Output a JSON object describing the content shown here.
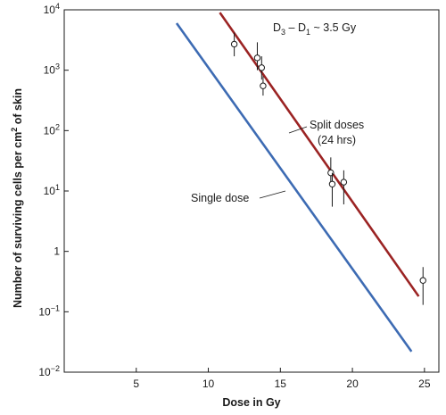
{
  "chart_data": {
    "type": "line",
    "xlabel": "Dose in Gy",
    "ylabel": "Number of surviving cells per cm",
    "ylabel_sup": "2",
    "ylabel_suffix": " of skin",
    "xlim": [
      0,
      26
    ],
    "ylim": [
      0.01,
      10000
    ],
    "y_scale": "log",
    "x_ticks": [
      5,
      10,
      15,
      20,
      25
    ],
    "y_ticks": [
      {
        "value": 10000,
        "base": "10",
        "exp": "4"
      },
      {
        "value": 1000,
        "base": "10",
        "exp": "3"
      },
      {
        "value": 100,
        "base": "10",
        "exp": "2"
      },
      {
        "value": 10,
        "base": "10",
        "exp": "1"
      },
      {
        "value": 1,
        "base": "1",
        "exp": ""
      },
      {
        "value": 0.1,
        "base": "10",
        "exp": "−1"
      },
      {
        "value": 0.01,
        "base": "10",
        "exp": "−2"
      }
    ],
    "series": [
      {
        "name": "Single dose",
        "color": "#3d6bb3",
        "line": [
          [
            7.8,
            6000
          ],
          [
            24.1,
            0.022
          ]
        ]
      },
      {
        "name": "Split doses",
        "name_line2": "(24 hrs)",
        "color": "#9b2323",
        "line": [
          [
            10.8,
            9000
          ],
          [
            24.6,
            0.18
          ]
        ],
        "points": [
          {
            "x": 11.8,
            "y": 2700,
            "ylo": 1700,
            "yhi": 4200
          },
          {
            "x": 13.4,
            "y": 1600,
            "ylo": 1000,
            "yhi": 2900
          },
          {
            "x": 13.7,
            "y": 1100,
            "ylo": 700,
            "yhi": 1700
          },
          {
            "x": 13.8,
            "y": 550,
            "ylo": 380,
            "yhi": 800
          },
          {
            "x": 18.5,
            "y": 20,
            "ylo": 12,
            "yhi": 36
          },
          {
            "x": 18.6,
            "y": 13,
            "ylo": 5.5,
            "yhi": 20
          },
          {
            "x": 19.4,
            "y": 14,
            "ylo": 6,
            "yhi": 22
          },
          {
            "x": 24.9,
            "y": 0.33,
            "ylo": 0.13,
            "yhi": 0.55
          }
        ]
      }
    ],
    "annotation": {
      "d3": "3",
      "d1": "1",
      "text_a": "D",
      "text_b": " – D",
      "text_c": " ~ 3.5 Gy"
    },
    "grid": false,
    "legend": "inline labels"
  }
}
